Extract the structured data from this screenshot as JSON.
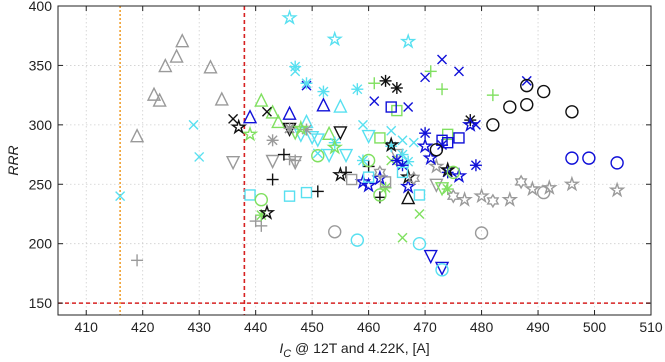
{
  "chart_data": {
    "type": "scatter",
    "xlabel": "I_C @ 12T and 4.22K,  [A]",
    "ylabel": "RRR",
    "xlim": [
      405,
      510
    ],
    "ylim": [
      140,
      400
    ],
    "x_ticks": [
      410,
      420,
      430,
      440,
      450,
      460,
      470,
      480,
      490,
      500,
      510
    ],
    "y_ticks": [
      150,
      200,
      250,
      300,
      350,
      400
    ],
    "grid": true,
    "reference_lines": [
      {
        "orientation": "vertical",
        "value": 416,
        "color": "#f0a030",
        "style": "dotted"
      },
      {
        "orientation": "vertical",
        "value": 438,
        "color": "#d62020",
        "style": "dashed"
      },
      {
        "orientation": "horizontal",
        "value": 150,
        "color": "#d62020",
        "style": "dashed"
      }
    ],
    "colors": {
      "gray": "#9a9a9a",
      "cyan": "#58e0f0",
      "green": "#80e060",
      "blue": "#1010d8",
      "black": "#101010"
    },
    "series": [
      {
        "marker": "triangle-up",
        "color": "gray",
        "points": [
          [
            419,
            290
          ],
          [
            422,
            325
          ],
          [
            423,
            320
          ],
          [
            424,
            349
          ],
          [
            426,
            357
          ],
          [
            427,
            370
          ],
          [
            432,
            348
          ],
          [
            434,
            321
          ]
        ]
      },
      {
        "marker": "triangle-up",
        "color": "cyan",
        "points": [
          [
            449,
            302
          ],
          [
            455,
            315
          ]
        ]
      },
      {
        "marker": "triangle-up",
        "color": "green",
        "points": [
          [
            441,
            320
          ],
          [
            443,
            310
          ],
          [
            444,
            302
          ],
          [
            453,
            292
          ]
        ]
      },
      {
        "marker": "triangle-up",
        "color": "blue",
        "points": [
          [
            439,
            306
          ],
          [
            446,
            309
          ],
          [
            452,
            316
          ]
        ]
      },
      {
        "marker": "triangle-up",
        "color": "black",
        "points": [
          [
            467,
            238
          ]
        ]
      },
      {
        "marker": "triangle-down",
        "color": "gray",
        "points": [
          [
            436,
            269
          ],
          [
            443,
            270
          ],
          [
            447,
            269
          ],
          [
            465,
            275
          ],
          [
            472,
            250
          ]
        ]
      },
      {
        "marker": "triangle-down",
        "color": "cyan",
        "points": [
          [
            448,
            292
          ],
          [
            450,
            290
          ],
          [
            451,
            288
          ],
          [
            453,
            275
          ],
          [
            456,
            275
          ],
          [
            460,
            291
          ]
        ]
      },
      {
        "marker": "triangle-down",
        "color": "green",
        "points": [
          [
            447,
            294
          ],
          [
            473,
            247
          ]
        ]
      },
      {
        "marker": "triangle-down",
        "color": "blue",
        "points": [
          [
            471,
            190
          ],
          [
            473,
            180
          ]
        ]
      },
      {
        "marker": "triangle-down",
        "color": "black",
        "points": [
          [
            446,
            297
          ],
          [
            455,
            294
          ]
        ]
      },
      {
        "marker": "plus",
        "color": "gray",
        "points": [
          [
            419,
            186
          ],
          [
            440,
            219
          ],
          [
            441,
            215
          ],
          [
            446,
            271
          ],
          [
            447,
            270
          ]
        ]
      },
      {
        "marker": "plus",
        "color": "green",
        "points": [
          [
            461,
            335
          ],
          [
            471,
            345
          ],
          [
            473,
            330
          ],
          [
            482,
            325
          ]
        ]
      },
      {
        "marker": "plus",
        "color": "black",
        "points": [
          [
            443,
            254
          ],
          [
            445,
            275
          ],
          [
            451,
            244
          ],
          [
            456,
            260
          ],
          [
            460,
            265
          ],
          [
            462,
            239
          ]
        ]
      },
      {
        "marker": "x",
        "color": "cyan",
        "points": [
          [
            416,
            240
          ],
          [
            429,
            300
          ],
          [
            430,
            273
          ],
          [
            447,
            345
          ],
          [
            451,
            276
          ],
          [
            459,
            300
          ],
          [
            464,
            295
          ],
          [
            466,
            287
          ],
          [
            468,
            285
          ]
        ]
      },
      {
        "marker": "x",
        "color": "green",
        "points": [
          [
            464,
            270
          ],
          [
            469,
            225
          ],
          [
            466,
            205
          ]
        ]
      },
      {
        "marker": "x",
        "color": "blue",
        "points": [
          [
            449,
            333
          ],
          [
            461,
            320
          ],
          [
            467,
            315
          ],
          [
            470,
            340
          ],
          [
            473,
            355
          ],
          [
            476,
            345
          ],
          [
            479,
            300
          ],
          [
            488,
            337
          ]
        ]
      },
      {
        "marker": "x",
        "color": "black",
        "points": [
          [
            436,
            305
          ],
          [
            442,
            311
          ],
          [
            446,
            297
          ]
        ]
      },
      {
        "marker": "asterisk",
        "color": "cyan",
        "points": [
          [
            447,
            349
          ],
          [
            449,
            335
          ],
          [
            452,
            328
          ],
          [
            454,
            285
          ],
          [
            458,
            330
          ],
          [
            459,
            270
          ],
          [
            464,
            282
          ],
          [
            466,
            275
          ],
          [
            467,
            269
          ]
        ]
      },
      {
        "marker": "asterisk",
        "color": "green",
        "points": [
          [
            441,
            224
          ],
          [
            463,
            247
          ],
          [
            474,
            246
          ]
        ]
      },
      {
        "marker": "asterisk",
        "color": "gray",
        "points": [
          [
            443,
            287
          ],
          [
            446,
            297
          ],
          [
            449,
            296
          ]
        ]
      },
      {
        "marker": "asterisk",
        "color": "blue",
        "points": [
          [
            465,
            270
          ],
          [
            466,
            266
          ],
          [
            470,
            293
          ],
          [
            473,
            283
          ],
          [
            474,
            260
          ],
          [
            479,
            266
          ]
        ]
      },
      {
        "marker": "asterisk",
        "color": "black",
        "points": [
          [
            463,
            337
          ],
          [
            465,
            331
          ],
          [
            478,
            304
          ]
        ]
      },
      {
        "marker": "star",
        "color": "cyan",
        "points": [
          [
            446,
            390
          ],
          [
            454,
            372
          ],
          [
            467,
            370
          ]
        ]
      },
      {
        "marker": "star",
        "color": "gray",
        "points": [
          [
            472,
            265
          ],
          [
            477,
            237
          ],
          [
            480,
            240
          ],
          [
            485,
            237
          ],
          [
            489,
            246
          ],
          [
            492,
            247
          ],
          [
            496,
            250
          ],
          [
            504,
            245
          ]
        ]
      },
      {
        "marker": "star",
        "color": "green",
        "points": [
          [
            439,
            292
          ],
          [
            448,
            297
          ],
          [
            454,
            281
          ]
        ]
      },
      {
        "marker": "star",
        "color": "blue",
        "points": [
          [
            459,
            252
          ],
          [
            460,
            249
          ],
          [
            462,
            255
          ],
          [
            467,
            248
          ],
          [
            470,
            282
          ],
          [
            471,
            272
          ],
          [
            476,
            257
          ],
          [
            478,
            300
          ]
        ]
      },
      {
        "marker": "star",
        "color": "black",
        "points": [
          [
            437,
            298
          ],
          [
            442,
            226
          ],
          [
            455,
            258
          ],
          [
            464,
            283
          ],
          [
            467,
            256
          ],
          [
            474,
            262
          ]
        ]
      },
      {
        "marker": "hexagram",
        "color": "gray",
        "points": [
          [
            462,
            260
          ],
          [
            468,
            255
          ],
          [
            475,
            240
          ],
          [
            482,
            236
          ],
          [
            487,
            252
          ]
        ]
      },
      {
        "marker": "square",
        "color": "cyan",
        "points": [
          [
            439,
            241
          ],
          [
            446,
            240
          ],
          [
            449,
            243
          ],
          [
            460,
            256
          ],
          [
            466,
            260
          ],
          [
            469,
            241
          ]
        ]
      },
      {
        "marker": "square",
        "color": "green",
        "points": [
          [
            462,
            289
          ],
          [
            465,
            312
          ],
          [
            474,
            292
          ]
        ]
      },
      {
        "marker": "square",
        "color": "blue",
        "points": [
          [
            464,
            315
          ],
          [
            473,
            287
          ],
          [
            474,
            285
          ],
          [
            476,
            289
          ]
        ]
      },
      {
        "marker": "square",
        "color": "gray",
        "points": [
          [
            457,
            254
          ],
          [
            463,
            252
          ]
        ]
      },
      {
        "marker": "circle",
        "color": "gray",
        "points": [
          [
            454,
            210
          ],
          [
            480,
            209
          ],
          [
            491,
            243
          ]
        ]
      },
      {
        "marker": "circle",
        "color": "cyan",
        "points": [
          [
            458,
            203
          ],
          [
            469,
            200
          ],
          [
            473,
            178
          ]
        ]
      },
      {
        "marker": "circle",
        "color": "green",
        "points": [
          [
            441,
            237
          ],
          [
            451,
            274
          ],
          [
            460,
            270
          ],
          [
            462,
            241
          ],
          [
            475,
            260
          ]
        ]
      },
      {
        "marker": "circle",
        "color": "blue",
        "points": [
          [
            496,
            272
          ],
          [
            499,
            272
          ],
          [
            504,
            268
          ]
        ]
      },
      {
        "marker": "circle",
        "color": "black",
        "points": [
          [
            472,
            279
          ],
          [
            482,
            300
          ],
          [
            485,
            315
          ],
          [
            488,
            317
          ],
          [
            488,
            333
          ],
          [
            491,
            328
          ],
          [
            496,
            311
          ]
        ]
      }
    ]
  }
}
